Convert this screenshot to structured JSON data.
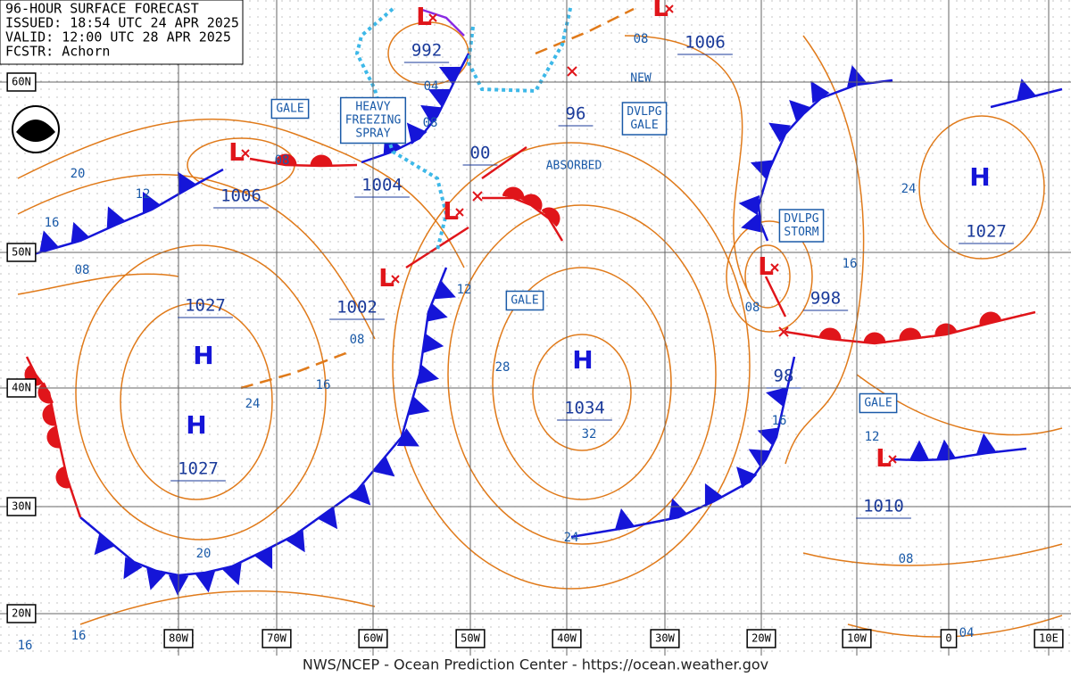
{
  "header": {
    "lines": [
      "96-HOUR SURFACE FORECAST",
      "ISSUED: 18:54 UTC 24 APR 2025",
      "VALID: 12:00 UTC 28 APR 2025",
      "FCSTR: Achorn"
    ]
  },
  "latitude_labels": [
    "60N",
    "50N",
    "40N",
    "30N",
    "20N"
  ],
  "longitude_labels": [
    "80W",
    "70W",
    "60W",
    "50W",
    "40W",
    "30W",
    "20W",
    "10W",
    "0",
    "10E"
  ],
  "centers": [
    {
      "symbol": "L",
      "pressure": "1006"
    },
    {
      "symbol": "L",
      "pressure": "1004"
    },
    {
      "symbol": "L",
      "pressure": "1002"
    },
    {
      "symbol": "L",
      "pressure": "992"
    },
    {
      "pressure": "00"
    },
    {
      "pressure": "96"
    },
    {
      "symbol": "L",
      "pressure": "998"
    },
    {
      "pressure": "98"
    },
    {
      "symbol": "H",
      "pressure": "1034"
    },
    {
      "symbol": "H",
      "pressure": "1027"
    },
    {
      "symbol": "H",
      "pressure": "1027"
    },
    {
      "symbol": "H",
      "pressure": "1027"
    },
    {
      "symbol": "L",
      "pressure": "1006"
    },
    {
      "symbol": "L",
      "pressure": "1010"
    }
  ],
  "boxed_annotations": [
    {
      "lines": [
        "GALE"
      ]
    },
    {
      "lines": [
        "HEAVY",
        "FREEZING",
        "SPRAY"
      ]
    },
    {
      "lines": [
        "DVLPG",
        "GALE"
      ]
    },
    {
      "lines": [
        "DVLPG",
        "STORM"
      ]
    },
    {
      "lines": [
        "GALE"
      ]
    },
    {
      "lines": [
        "GALE"
      ]
    }
  ],
  "plain_annotations": [
    "NEW",
    "ABSORBED"
  ],
  "isobar_labels": [
    "20",
    "12",
    "16",
    "08",
    "08",
    "04",
    "08",
    "08",
    "12",
    "08",
    "16",
    "24",
    "28",
    "32",
    "24",
    "20",
    "16",
    "16",
    "08",
    "16",
    "24",
    "16",
    "12",
    "08",
    "04"
  ],
  "footer": "NWS/NCEP - Ocean Prediction Center - https://ocean.weather.gov"
}
